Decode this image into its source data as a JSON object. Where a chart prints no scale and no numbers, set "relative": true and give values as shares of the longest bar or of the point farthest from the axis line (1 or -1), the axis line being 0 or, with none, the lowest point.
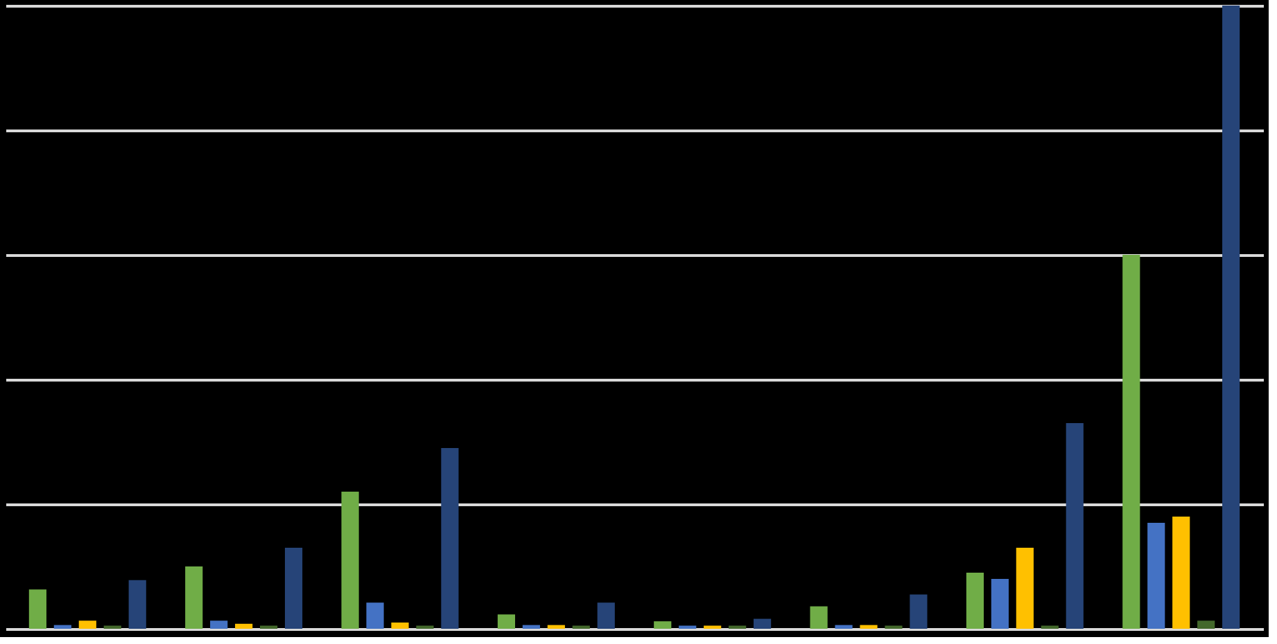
{
  "chart_data": {
    "type": "bar",
    "relative": true,
    "grid": "y",
    "legend": false,
    "categories": [
      null,
      null,
      null,
      null,
      null,
      null,
      null,
      null
    ],
    "series": [
      {
        "color": "#70ad47",
        "values": [
          0.063,
          0.1,
          0.22,
          0.023,
          0.012,
          0.036,
          0.09,
          0.6
        ]
      },
      {
        "color": "#4472c4",
        "values": [
          0.006,
          0.013,
          0.042,
          0.006,
          0.005,
          0.006,
          0.08,
          0.17
        ]
      },
      {
        "color": "#ffc000",
        "values": [
          0.013,
          0.008,
          0.01,
          0.006,
          0.005,
          0.006,
          0.13,
          0.18
        ]
      },
      {
        "color": "#43682b",
        "values": [
          0.005,
          0.005,
          0.005,
          0.005,
          0.005,
          0.005,
          0.005,
          0.013
        ]
      },
      {
        "color": "#264478",
        "values": [
          0.078,
          0.13,
          0.29,
          0.042,
          0.016,
          0.055,
          0.33,
          1
        ]
      }
    ]
  }
}
